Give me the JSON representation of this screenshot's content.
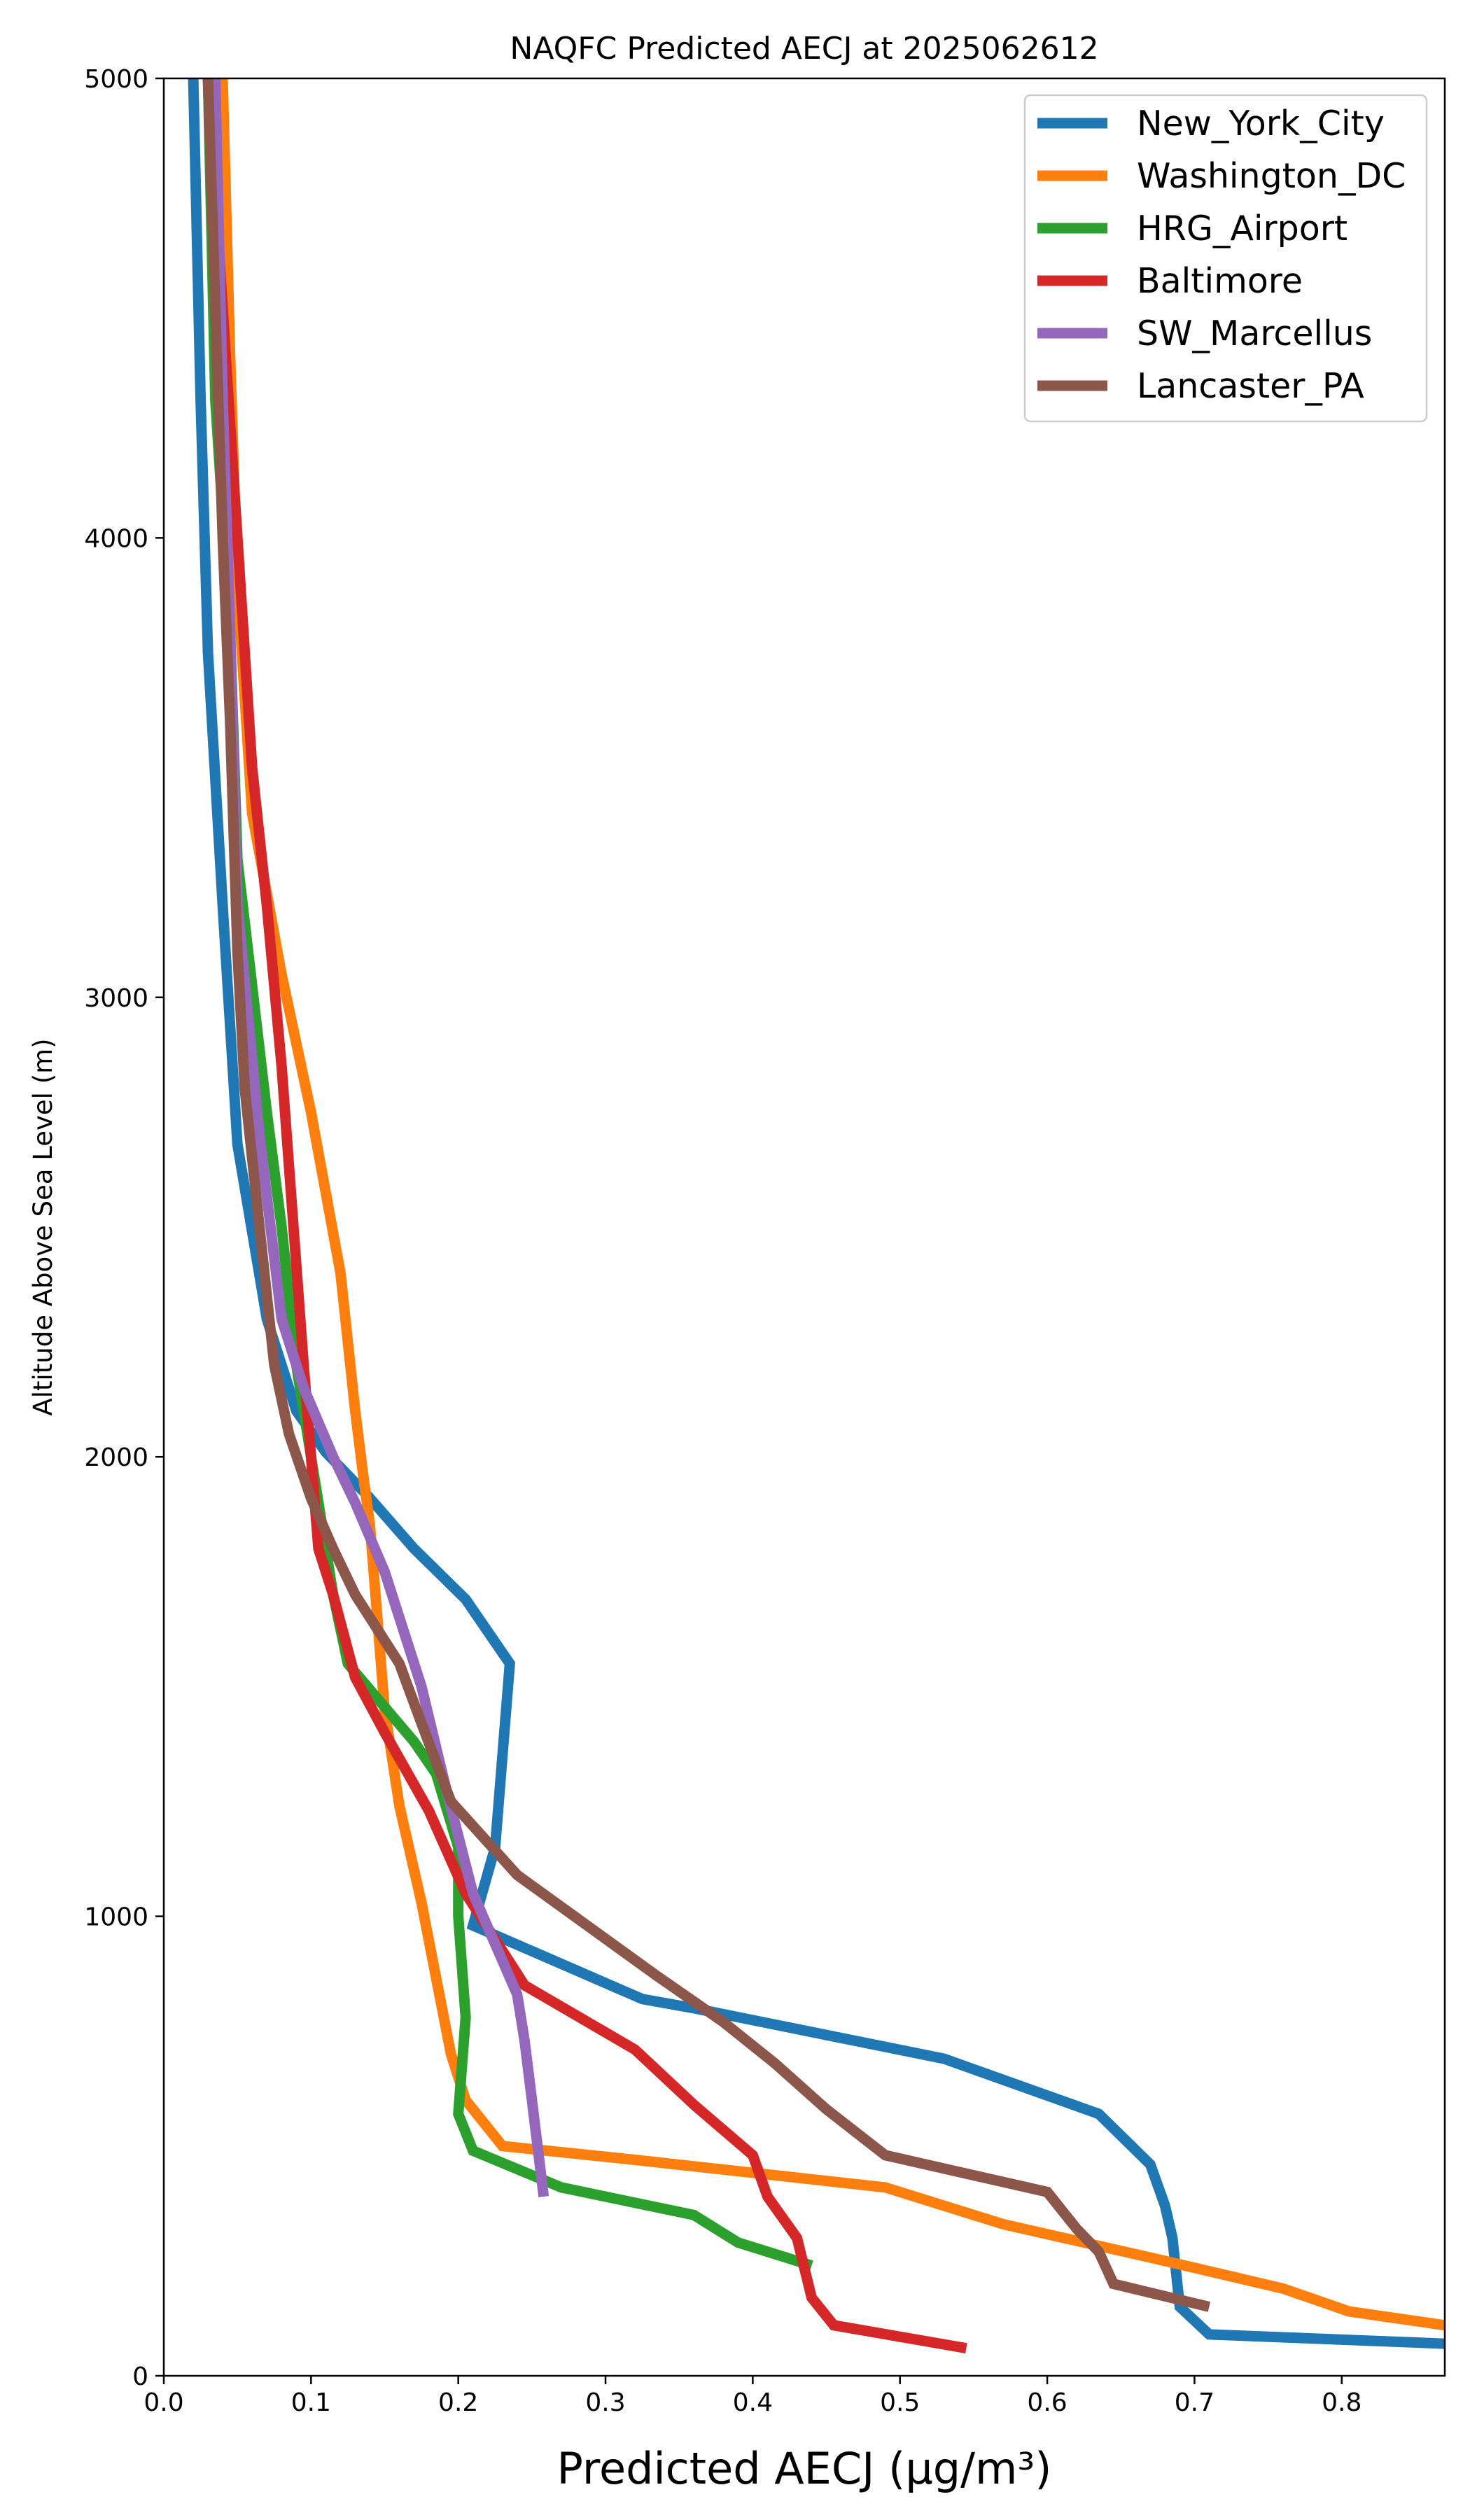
{
  "chart_data": {
    "type": "line",
    "title": "NAQFC Predicted AECJ at 2025062612",
    "xlabel": "Predicted AECJ (μg/m³)",
    "ylabel": "Altitude Above Sea Level (m)",
    "xlim": [
      0.0,
      0.87
    ],
    "ylim": [
      0,
      5000
    ],
    "xticks": [
      "0.0",
      "0.1",
      "0.2",
      "0.3",
      "0.4",
      "0.5",
      "0.6",
      "0.7",
      "0.8"
    ],
    "yticks": [
      "0",
      "1000",
      "2000",
      "3000",
      "4000",
      "5000"
    ],
    "grid": false,
    "legend_position": "top-right",
    "series": [
      {
        "name": "New_York_City",
        "color": "#1f77b4",
        "points": [
          [
            0.87,
            70
          ],
          [
            0.71,
            90
          ],
          [
            0.69,
            150
          ],
          [
            0.685,
            300
          ],
          [
            0.68,
            370
          ],
          [
            0.67,
            460
          ],
          [
            0.635,
            570
          ],
          [
            0.53,
            690
          ],
          [
            0.36,
            800
          ],
          [
            0.325,
            820
          ],
          [
            0.21,
            980
          ],
          [
            0.225,
            1150
          ],
          [
            0.23,
            1350
          ],
          [
            0.235,
            1550
          ],
          [
            0.205,
            1690
          ],
          [
            0.17,
            1800
          ],
          [
            0.14,
            1910
          ],
          [
            0.11,
            2010
          ],
          [
            0.09,
            2100
          ],
          [
            0.07,
            2300
          ],
          [
            0.05,
            2680
          ],
          [
            0.04,
            3200
          ],
          [
            0.03,
            3750
          ],
          [
            0.025,
            4300
          ],
          [
            0.02,
            5000
          ]
        ]
      },
      {
        "name": "Washington_DC",
        "color": "#ff7f0e",
        "points": [
          [
            0.87,
            110
          ],
          [
            0.805,
            140
          ],
          [
            0.76,
            190
          ],
          [
            0.68,
            250
          ],
          [
            0.57,
            330
          ],
          [
            0.49,
            410
          ],
          [
            0.32,
            470
          ],
          [
            0.23,
            500
          ],
          [
            0.205,
            600
          ],
          [
            0.195,
            700
          ],
          [
            0.175,
            1030
          ],
          [
            0.16,
            1240
          ],
          [
            0.15,
            1450
          ],
          [
            0.145,
            1650
          ],
          [
            0.14,
            1850
          ],
          [
            0.135,
            1970
          ],
          [
            0.13,
            2100
          ],
          [
            0.12,
            2400
          ],
          [
            0.1,
            2750
          ],
          [
            0.08,
            3050
          ],
          [
            0.06,
            3400
          ],
          [
            0.05,
            3900
          ],
          [
            0.045,
            4400
          ],
          [
            0.04,
            5000
          ]
        ]
      },
      {
        "name": "HRG_Airport",
        "color": "#2ca02c",
        "points": [
          [
            0.44,
            240
          ],
          [
            0.39,
            290
          ],
          [
            0.36,
            350
          ],
          [
            0.27,
            410
          ],
          [
            0.21,
            490
          ],
          [
            0.2,
            570
          ],
          [
            0.205,
            780
          ],
          [
            0.2,
            1000
          ],
          [
            0.2,
            1150
          ],
          [
            0.185,
            1310
          ],
          [
            0.17,
            1380
          ],
          [
            0.125,
            1550
          ],
          [
            0.115,
            1700
          ],
          [
            0.105,
            1900
          ],
          [
            0.09,
            2200
          ],
          [
            0.08,
            2500
          ],
          [
            0.07,
            2750
          ],
          [
            0.05,
            3300
          ],
          [
            0.045,
            3800
          ],
          [
            0.035,
            4300
          ],
          [
            0.03,
            5000
          ]
        ]
      },
      {
        "name": "Baltimore",
        "color": "#d62728",
        "points": [
          [
            0.545,
            60
          ],
          [
            0.455,
            110
          ],
          [
            0.44,
            170
          ],
          [
            0.43,
            300
          ],
          [
            0.41,
            390
          ],
          [
            0.4,
            480
          ],
          [
            0.36,
            590
          ],
          [
            0.32,
            710
          ],
          [
            0.245,
            850
          ],
          [
            0.205,
            1050
          ],
          [
            0.18,
            1230
          ],
          [
            0.15,
            1400
          ],
          [
            0.13,
            1520
          ],
          [
            0.115,
            1700
          ],
          [
            0.105,
            1800
          ],
          [
            0.1,
            2000
          ],
          [
            0.095,
            2200
          ],
          [
            0.08,
            2850
          ],
          [
            0.07,
            3200
          ],
          [
            0.06,
            3500
          ],
          [
            0.05,
            4000
          ],
          [
            0.04,
            4500
          ],
          [
            0.03,
            5000
          ]
        ]
      },
      {
        "name": "SW_Marcellus",
        "color": "#9467bd",
        "points": [
          [
            0.258,
            390
          ],
          [
            0.25,
            600
          ],
          [
            0.245,
            730
          ],
          [
            0.24,
            830
          ],
          [
            0.21,
            1050
          ],
          [
            0.19,
            1300
          ],
          [
            0.175,
            1500
          ],
          [
            0.165,
            1600
          ],
          [
            0.15,
            1750
          ],
          [
            0.13,
            1900
          ],
          [
            0.115,
            2000
          ],
          [
            0.095,
            2150
          ],
          [
            0.08,
            2300
          ],
          [
            0.065,
            2700
          ],
          [
            0.05,
            3200
          ],
          [
            0.045,
            3800
          ],
          [
            0.04,
            4300
          ],
          [
            0.035,
            5000
          ]
        ]
      },
      {
        "name": "Lancaster_PA",
        "color": "#8c564b",
        "points": [
          [
            0.71,
            150
          ],
          [
            0.645,
            200
          ],
          [
            0.635,
            270
          ],
          [
            0.62,
            320
          ],
          [
            0.6,
            400
          ],
          [
            0.49,
            480
          ],
          [
            0.45,
            580
          ],
          [
            0.415,
            680
          ],
          [
            0.38,
            770
          ],
          [
            0.335,
            870
          ],
          [
            0.24,
            1090
          ],
          [
            0.195,
            1250
          ],
          [
            0.175,
            1420
          ],
          [
            0.16,
            1550
          ],
          [
            0.13,
            1700
          ],
          [
            0.115,
            1800
          ],
          [
            0.1,
            1910
          ],
          [
            0.085,
            2050
          ],
          [
            0.075,
            2200
          ],
          [
            0.065,
            2500
          ],
          [
            0.055,
            2800
          ],
          [
            0.05,
            3100
          ],
          [
            0.045,
            3600
          ],
          [
            0.04,
            4000
          ],
          [
            0.035,
            4500
          ],
          [
            0.03,
            5000
          ]
        ]
      }
    ]
  }
}
